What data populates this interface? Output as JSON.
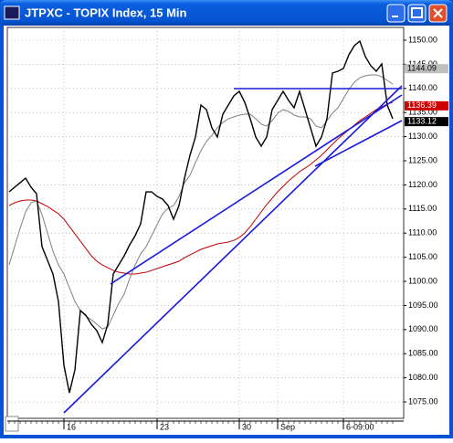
{
  "chart_data": {
    "type": "line",
    "title": "JTPXC - TOPIX Index, 15 Min",
    "categories": [
      null,
      null,
      null,
      null,
      null,
      null,
      null,
      null,
      null,
      null,
      "16",
      null,
      null,
      null,
      null,
      null,
      null,
      null,
      null,
      null,
      null,
      null,
      null,
      null,
      null,
      null,
      null,
      "23",
      null,
      null,
      null,
      null,
      null,
      null,
      null,
      null,
      null,
      null,
      null,
      null,
      null,
      null,
      "30",
      null,
      null,
      null,
      null,
      null,
      null,
      "Sep",
      null,
      null,
      null,
      null,
      null,
      null,
      null,
      null,
      null,
      null,
      null,
      "6-09:00",
      null,
      null,
      null,
      null,
      null,
      null,
      null,
      null,
      null
    ],
    "series": [
      {
        "color": "#000000",
        "values": [
          1118.56,
          1119.51,
          1120.45,
          1121.4,
          1119.51,
          1118.18,
          1107.2,
          1104.36,
          1101.52,
          1095.83,
          1082.58,
          1076.89,
          1081.63,
          1093.94,
          1092.99,
          1091.1,
          1089.77,
          1087.31,
          1091.1,
          1101.52,
          1103.41,
          1105.3,
          1107.58,
          1109.47,
          1111.93,
          1118.56,
          1118.56,
          1117.61,
          1117.05,
          1115.72,
          1112.88,
          1115.72,
          1121.4,
          1126.14,
          1129.92,
          1136.55,
          1135.61,
          1131.82,
          1129.92,
          1134.66,
          1136.55,
          1138.45,
          1139.39,
          1137.12,
          1133.71,
          1129.92,
          1128.03,
          1129.92,
          1135.61,
          1137.5,
          1139.39,
          1137.5,
          1135.98,
          1139.39,
          1135.61,
          1131.82,
          1128.03,
          1129.92,
          1133.71,
          1143.18,
          1143.56,
          1144.13,
          1146.97,
          1148.86,
          1149.81,
          1146.59,
          1144.7,
          1143.56,
          1145.08,
          1136.55,
          1133.71
        ]
      },
      {
        "color": "#808080",
        "values": [
          1103.41,
          1107.2,
          1110.98,
          1114.39,
          1116.29,
          1116.67,
          1113.83,
          1110.04,
          1106.25,
          1103.41,
          1101.52,
          1098.67,
          1095.83,
          1093.94,
          1092.8,
          1092.05,
          1091.1,
          1090.15,
          1090.53,
          1092.99,
          1095.45,
          1097.35,
          1100.57,
          1103.41,
          1105.68,
          1107.2,
          1109.47,
          1111.74,
          1114.02,
          1115.15,
          1115.72,
          1117.61,
          1120.45,
          1121.97,
          1124.62,
          1127.08,
          1128.98,
          1130.3,
          1131.82,
          1132.95,
          1133.71,
          1134.09,
          1134.47,
          1134.66,
          1134.66,
          1133.71,
          1132.58,
          1132.2,
          1133.33,
          1134.85,
          1135.61,
          1135.23,
          1134.47,
          1134.09,
          1134.09,
          1133.71,
          1132.2,
          1131.82,
          1133.33,
          1134.85,
          1135.98,
          1137.88,
          1139.77,
          1141.29,
          1142.23,
          1142.61,
          1142.8,
          1142.8,
          1142.42,
          1141.67,
          1140.91
        ]
      },
      {
        "color": "#c00000",
        "values": [
          1115.72,
          1116.29,
          1116.67,
          1116.86,
          1116.86,
          1116.67,
          1116.1,
          1115.53,
          1114.77,
          1114.02,
          1112.88,
          1111.36,
          1109.85,
          1108.33,
          1106.82,
          1105.3,
          1104.17,
          1103.41,
          1102.84,
          1102.27,
          1101.89,
          1101.7,
          1101.52,
          1101.52,
          1101.7,
          1101.89,
          1102.27,
          1102.65,
          1103.03,
          1103.41,
          1103.79,
          1104.17,
          1104.92,
          1105.49,
          1106.06,
          1106.63,
          1107.01,
          1107.39,
          1107.77,
          1107.95,
          1108.14,
          1108.52,
          1109.09,
          1110.04,
          1111.36,
          1112.88,
          1114.39,
          1115.91,
          1117.23,
          1118.56,
          1119.7,
          1120.83,
          1121.78,
          1122.73,
          1123.48,
          1124.24,
          1125.19,
          1126.14,
          1127.27,
          1128.41,
          1129.55,
          1130.49,
          1131.44,
          1132.39,
          1133.33,
          1134.09,
          1134.85,
          1135.61,
          1136.17,
          1136.74,
          1137.12
        ]
      }
    ],
    "ylim": [
      1071.6,
      1152.65
    ],
    "yticks": [
      {
        "value": 1150,
        "label": "1150.00"
      },
      {
        "value": 1145,
        "label": "1145.00"
      },
      {
        "value": 1140,
        "label": "1140.00"
      },
      {
        "value": 1135,
        "label": "1135.00"
      },
      {
        "value": 1130,
        "label": "1130.00"
      },
      {
        "value": 1125,
        "label": "1125.00"
      },
      {
        "value": 1120,
        "label": "1120.00"
      },
      {
        "value": 1115,
        "label": "1115.00"
      },
      {
        "value": 1110,
        "label": "1110.00"
      },
      {
        "value": 1105,
        "label": "1105.00"
      },
      {
        "value": 1100,
        "label": "1100.00"
      },
      {
        "value": 1095,
        "label": "1095.00"
      },
      {
        "value": 1090,
        "label": "1090.00"
      },
      {
        "value": 1085,
        "label": "1085.00"
      },
      {
        "value": 1080,
        "label": "1080.00"
      },
      {
        "value": 1075,
        "label": "1075.00"
      }
    ],
    "last_value_labels": [
      {
        "value": 1144.09,
        "label": "1144.09",
        "color": "#c0c0c0",
        "text_color": "#000000"
      },
      {
        "value": 1136.39,
        "label": "1136.39",
        "color": "#d00000",
        "text_color": "#ffffff"
      },
      {
        "value": 1133.12,
        "label": "1133.12",
        "color": "#000000",
        "text_color": "#ffffff"
      }
    ],
    "grid": true
  }
}
